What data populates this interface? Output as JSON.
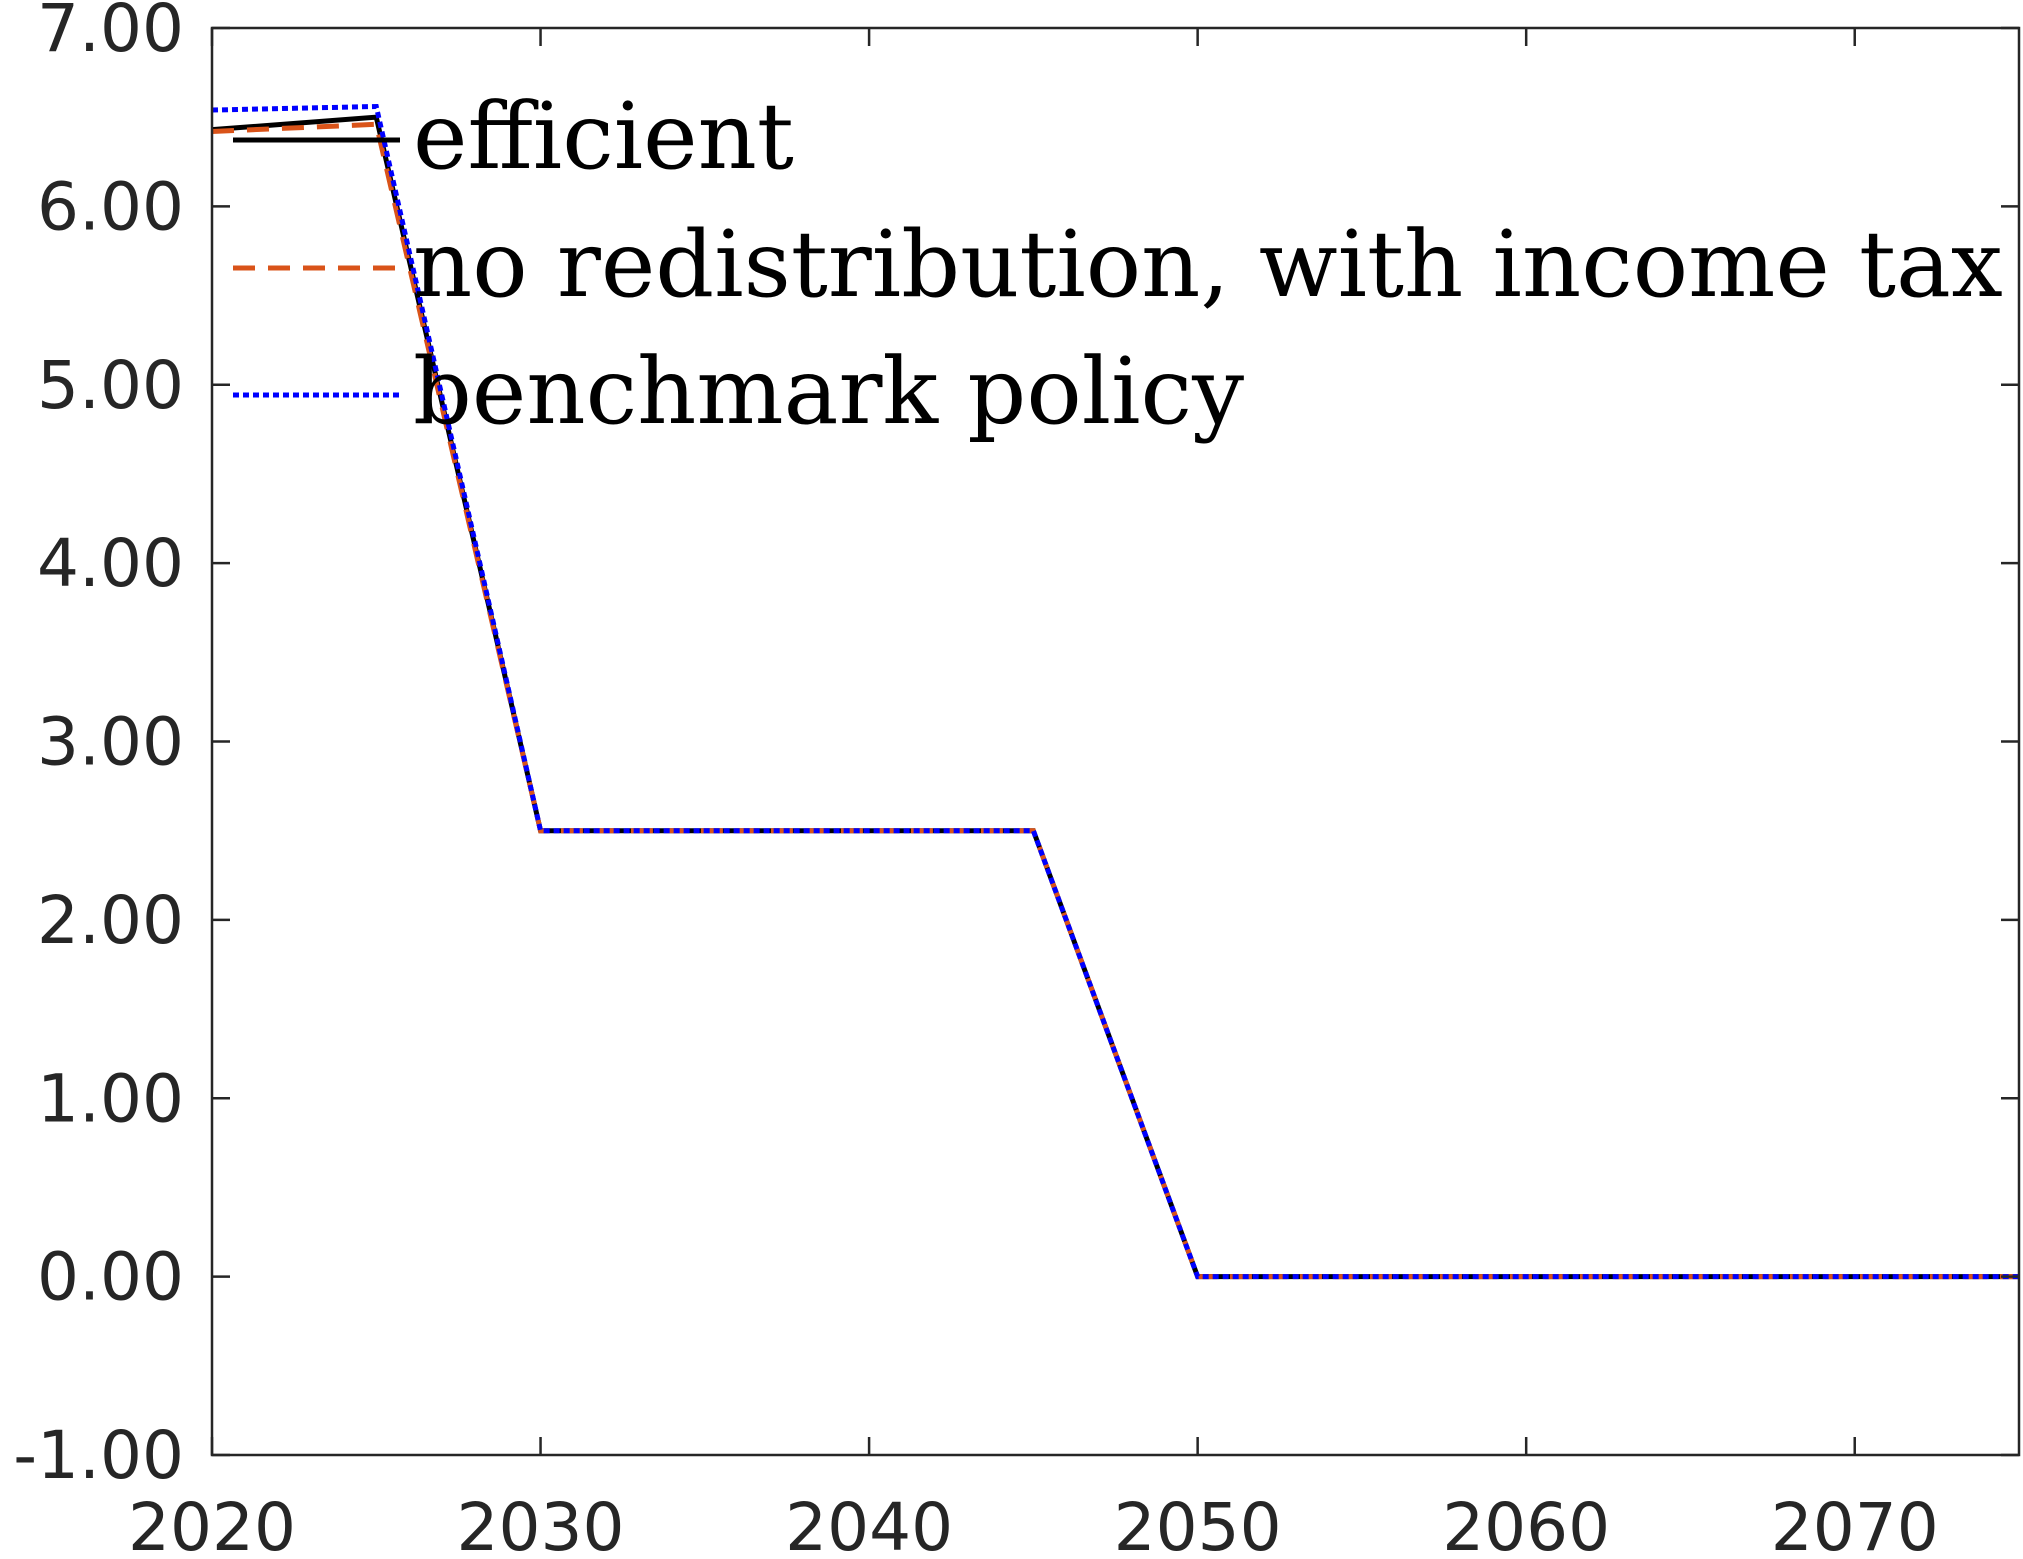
{
  "chart_data": {
    "type": "line",
    "title": "",
    "xlabel": "",
    "ylabel": "",
    "xlim": [
      2020,
      2075
    ],
    "ylim": [
      -1,
      7
    ],
    "x_ticks": [
      2020,
      2030,
      2040,
      2050,
      2060,
      2070
    ],
    "x_tick_labels": [
      "2020",
      "2030",
      "2040",
      "2050",
      "2060",
      "2070"
    ],
    "y_ticks": [
      -1,
      0,
      1,
      2,
      3,
      4,
      5,
      6,
      7
    ],
    "y_tick_labels": [
      "-1.00",
      "0.00",
      "1.00",
      "2.00",
      "3.00",
      "4.00",
      "5.00",
      "6.00",
      "7.00"
    ],
    "grid": false,
    "legend": "top-left",
    "series": [
      {
        "name": "efficient",
        "color": "#000000",
        "style": "solid",
        "x": [
          2020,
          2025,
          2030,
          2045,
          2050,
          2075
        ],
        "y": [
          6.43,
          6.5,
          2.5,
          2.5,
          0,
          0
        ]
      },
      {
        "name": "no redistribution, with income tax",
        "color": "#D95319",
        "style": "dashed",
        "x": [
          2020,
          2025,
          2030,
          2045,
          2050,
          2075
        ],
        "y": [
          6.42,
          6.46,
          2.5,
          2.5,
          0,
          0
        ]
      },
      {
        "name": "benchmark policy",
        "color": "#0000FF",
        "style": "dotted",
        "x": [
          2020,
          2025,
          2030,
          2045,
          2050,
          2075
        ],
        "y": [
          6.54,
          6.56,
          2.5,
          2.5,
          0,
          0
        ]
      }
    ]
  }
}
